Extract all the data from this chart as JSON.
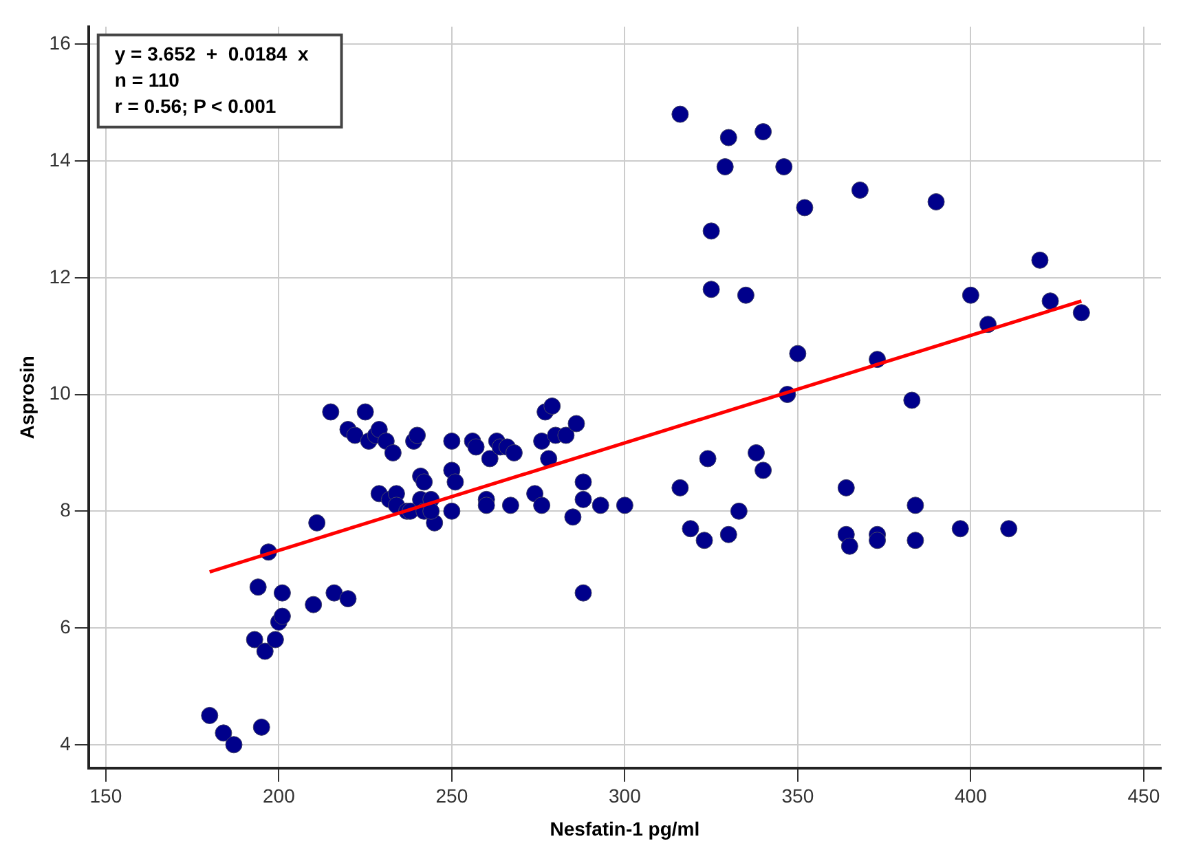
{
  "chart_data": {
    "type": "scatter",
    "xlabel": "Nesfatin-1 pg/ml",
    "ylabel": "Asprosin",
    "annotations": [
      "y = 3.652  +  0.0184  x",
      "n = 110",
      "r = 0.56; P < 0.001"
    ],
    "xlim": [
      145,
      455
    ],
    "xticks": [
      150,
      200,
      250,
      300,
      350,
      400,
      450
    ],
    "ylim": [
      3.6,
      16.3
    ],
    "yticks": [
      4,
      6,
      8,
      10,
      12,
      14,
      16
    ],
    "grid": true,
    "legend": false,
    "marker": "circle",
    "series": [
      {
        "color": "#00008b",
        "x": [
          180,
          184,
          187,
          195,
          193,
          196,
          199,
          200,
          201,
          194,
          201,
          197,
          210,
          216,
          220,
          211,
          215,
          225,
          220,
          222,
          226,
          228,
          229,
          231,
          233,
          239,
          240,
          229,
          232,
          234,
          234,
          237,
          238,
          241,
          242,
          241,
          242,
          244,
          245,
          244,
          250,
          250,
          251,
          250,
          256,
          257,
          261,
          263,
          264,
          266,
          268,
          260,
          260,
          267,
          274,
          276,
          276,
          277,
          279,
          278,
          280,
          283,
          286,
          285,
          288,
          288,
          293,
          300,
          288,
          316,
          330,
          340,
          329,
          346,
          352,
          368,
          390,
          325,
          325,
          335,
          350,
          347,
          373,
          383,
          400,
          405,
          420,
          423,
          432,
          316,
          324,
          319,
          323,
          330,
          333,
          338,
          340,
          364,
          364,
          365,
          373,
          373,
          384,
          384,
          397,
          411
        ],
        "values": [
          4.5,
          4.2,
          4.0,
          4.3,
          5.8,
          5.6,
          5.8,
          6.1,
          6.2,
          6.7,
          6.6,
          7.3,
          6.4,
          6.6,
          6.5,
          7.8,
          9.7,
          9.7,
          9.4,
          9.3,
          9.2,
          9.3,
          9.4,
          9.2,
          9.0,
          9.2,
          9.3,
          8.3,
          8.2,
          8.3,
          8.1,
          8.0,
          8.0,
          8.6,
          8.5,
          8.2,
          8.0,
          8.2,
          7.8,
          8.0,
          9.2,
          8.7,
          8.5,
          8.0,
          9.2,
          9.1,
          8.9,
          9.2,
          9.1,
          9.1,
          9.0,
          8.2,
          8.1,
          8.1,
          8.3,
          8.1,
          9.2,
          9.7,
          9.8,
          8.9,
          9.3,
          9.3,
          9.5,
          7.9,
          8.5,
          8.2,
          8.1,
          8.1,
          6.6,
          14.8,
          14.4,
          14.5,
          13.9,
          13.9,
          13.2,
          13.5,
          13.3,
          12.8,
          11.8,
          11.7,
          10.7,
          10.0,
          10.6,
          9.9,
          11.7,
          11.2,
          12.3,
          11.6,
          11.4,
          8.4,
          8.9,
          7.7,
          7.5,
          7.6,
          8.0,
          9.0,
          8.7,
          8.4,
          7.6,
          7.4,
          7.6,
          7.5,
          8.1,
          7.5,
          7.7,
          7.7
        ]
      },
      {
        "type": "line",
        "color": "#ff0000",
        "marker": "none",
        "x": [
          180,
          432
        ],
        "values": [
          6.96,
          11.6
        ]
      }
    ]
  }
}
